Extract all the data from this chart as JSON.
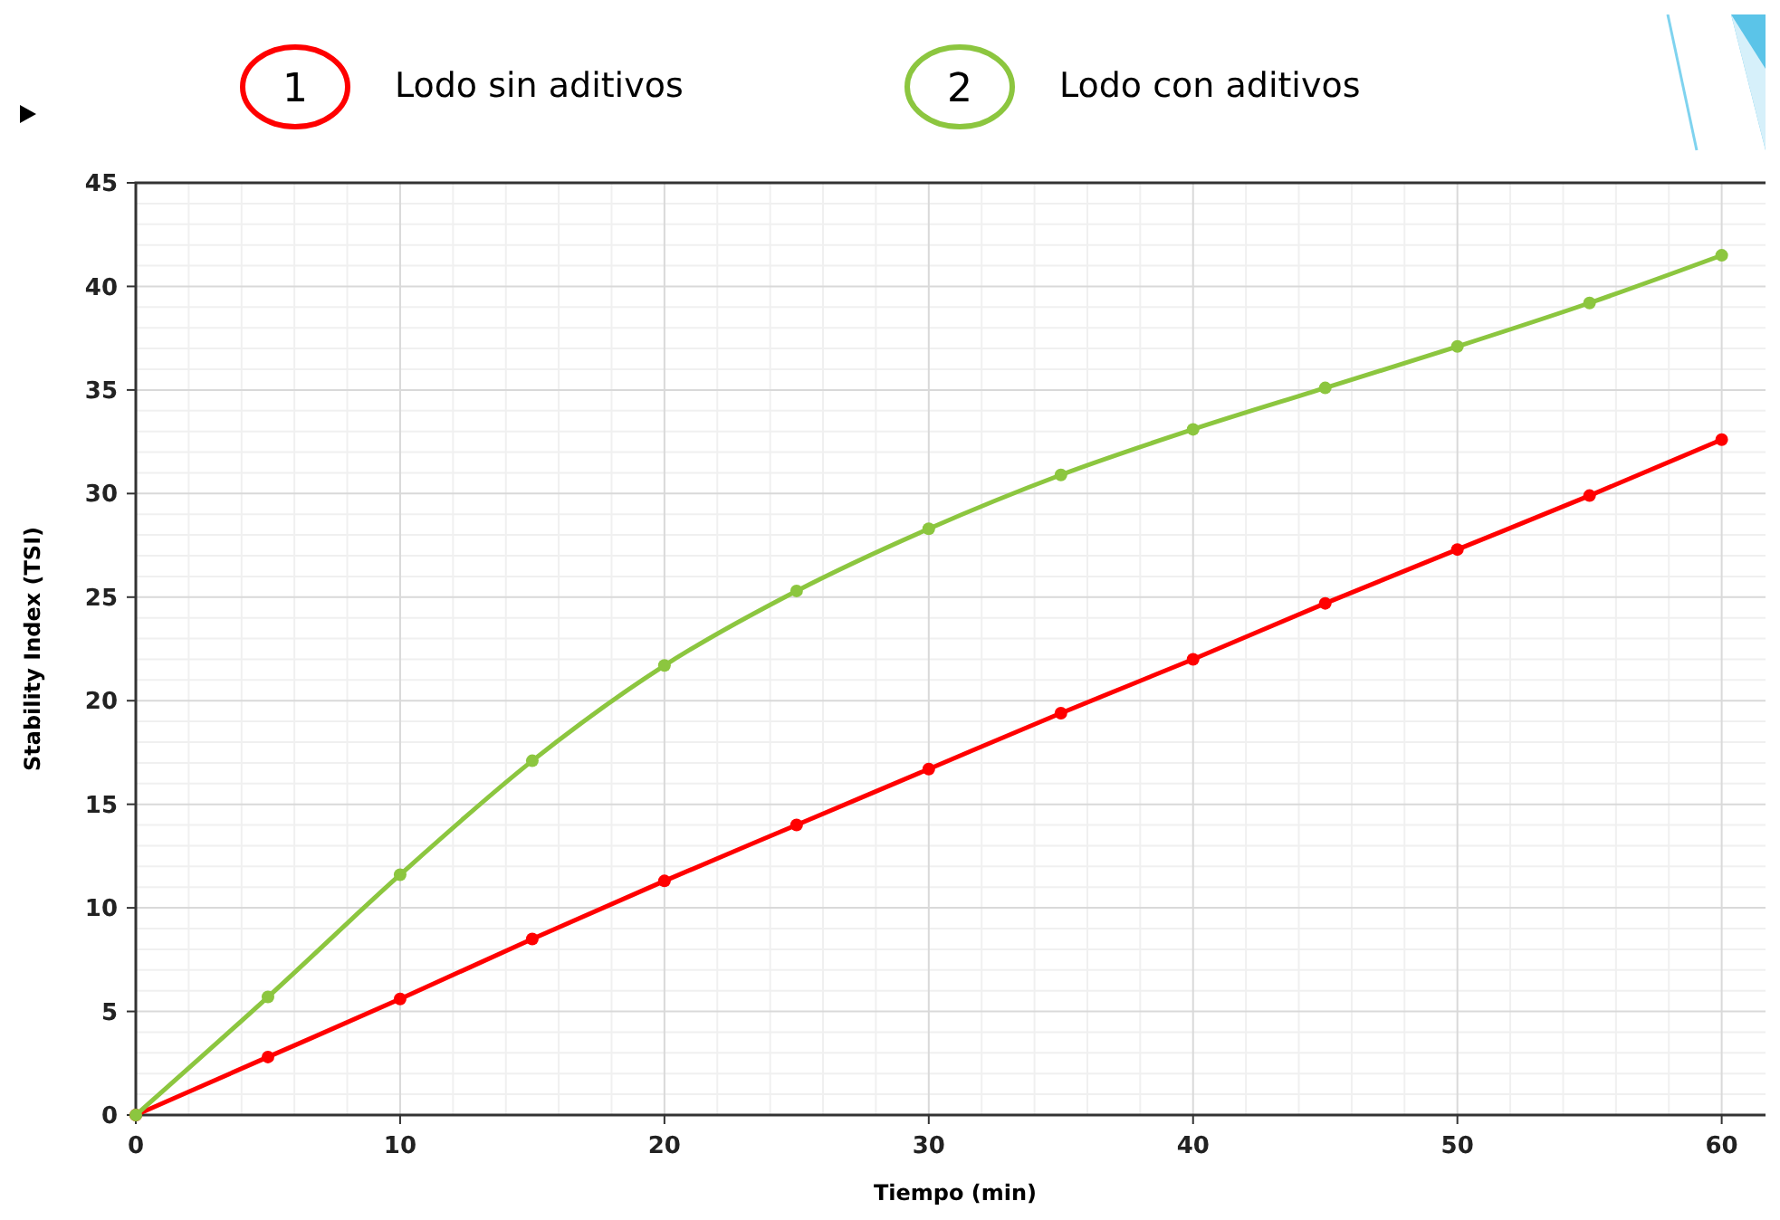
{
  "chart_data": {
    "type": "line",
    "xlabel": "Tiempo (min)",
    "ylabel": "Stability Index (TSI)",
    "x": [
      0,
      5,
      10,
      15,
      20,
      25,
      30,
      35,
      40,
      45,
      50,
      55,
      60
    ],
    "series": [
      {
        "name": "Lodo sin aditivos",
        "color": "#ff0000",
        "values": [
          0,
          2.8,
          5.6,
          8.5,
          11.3,
          14.0,
          16.7,
          19.4,
          22.0,
          24.7,
          27.3,
          29.9,
          32.6
        ]
      },
      {
        "name": "Lodo con aditivos",
        "color": "#8cc63f",
        "values": [
          0,
          5.7,
          11.6,
          17.1,
          21.7,
          25.3,
          28.3,
          30.9,
          33.1,
          35.1,
          37.1,
          39.2,
          41.5
        ]
      }
    ],
    "annotations": [
      "1",
      "2"
    ],
    "xlim": [
      0,
      62
    ],
    "xticks": [
      0,
      10,
      20,
      30,
      40,
      50,
      60
    ],
    "ylim": [
      0,
      45
    ],
    "yticks": [
      0,
      5,
      10,
      15,
      20,
      25,
      30,
      35,
      40,
      45
    ],
    "grid": true,
    "legend": "top",
    "marker": "circle",
    "line_style": "solid"
  }
}
